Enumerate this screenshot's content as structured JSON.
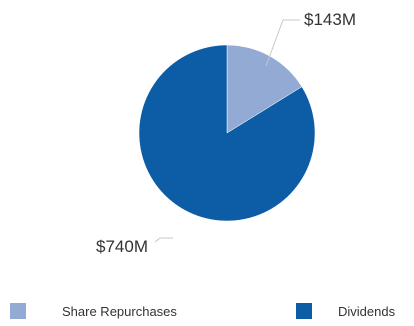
{
  "chart_data": {
    "type": "pie",
    "title": "",
    "unit": "$M",
    "slices": [
      {
        "name": "Share Repurchases",
        "value": 143,
        "label": "$143M",
        "color": "#92aad4"
      },
      {
        "name": "Dividends",
        "value": 740,
        "label": "$740M",
        "color": "#0d5ca6"
      }
    ],
    "legend": {
      "placement": "bottom",
      "items": [
        {
          "label": "Share Repurchases",
          "color": "#92aad4"
        },
        {
          "label": "Dividends",
          "color": "#0d5ca6"
        }
      ]
    }
  }
}
